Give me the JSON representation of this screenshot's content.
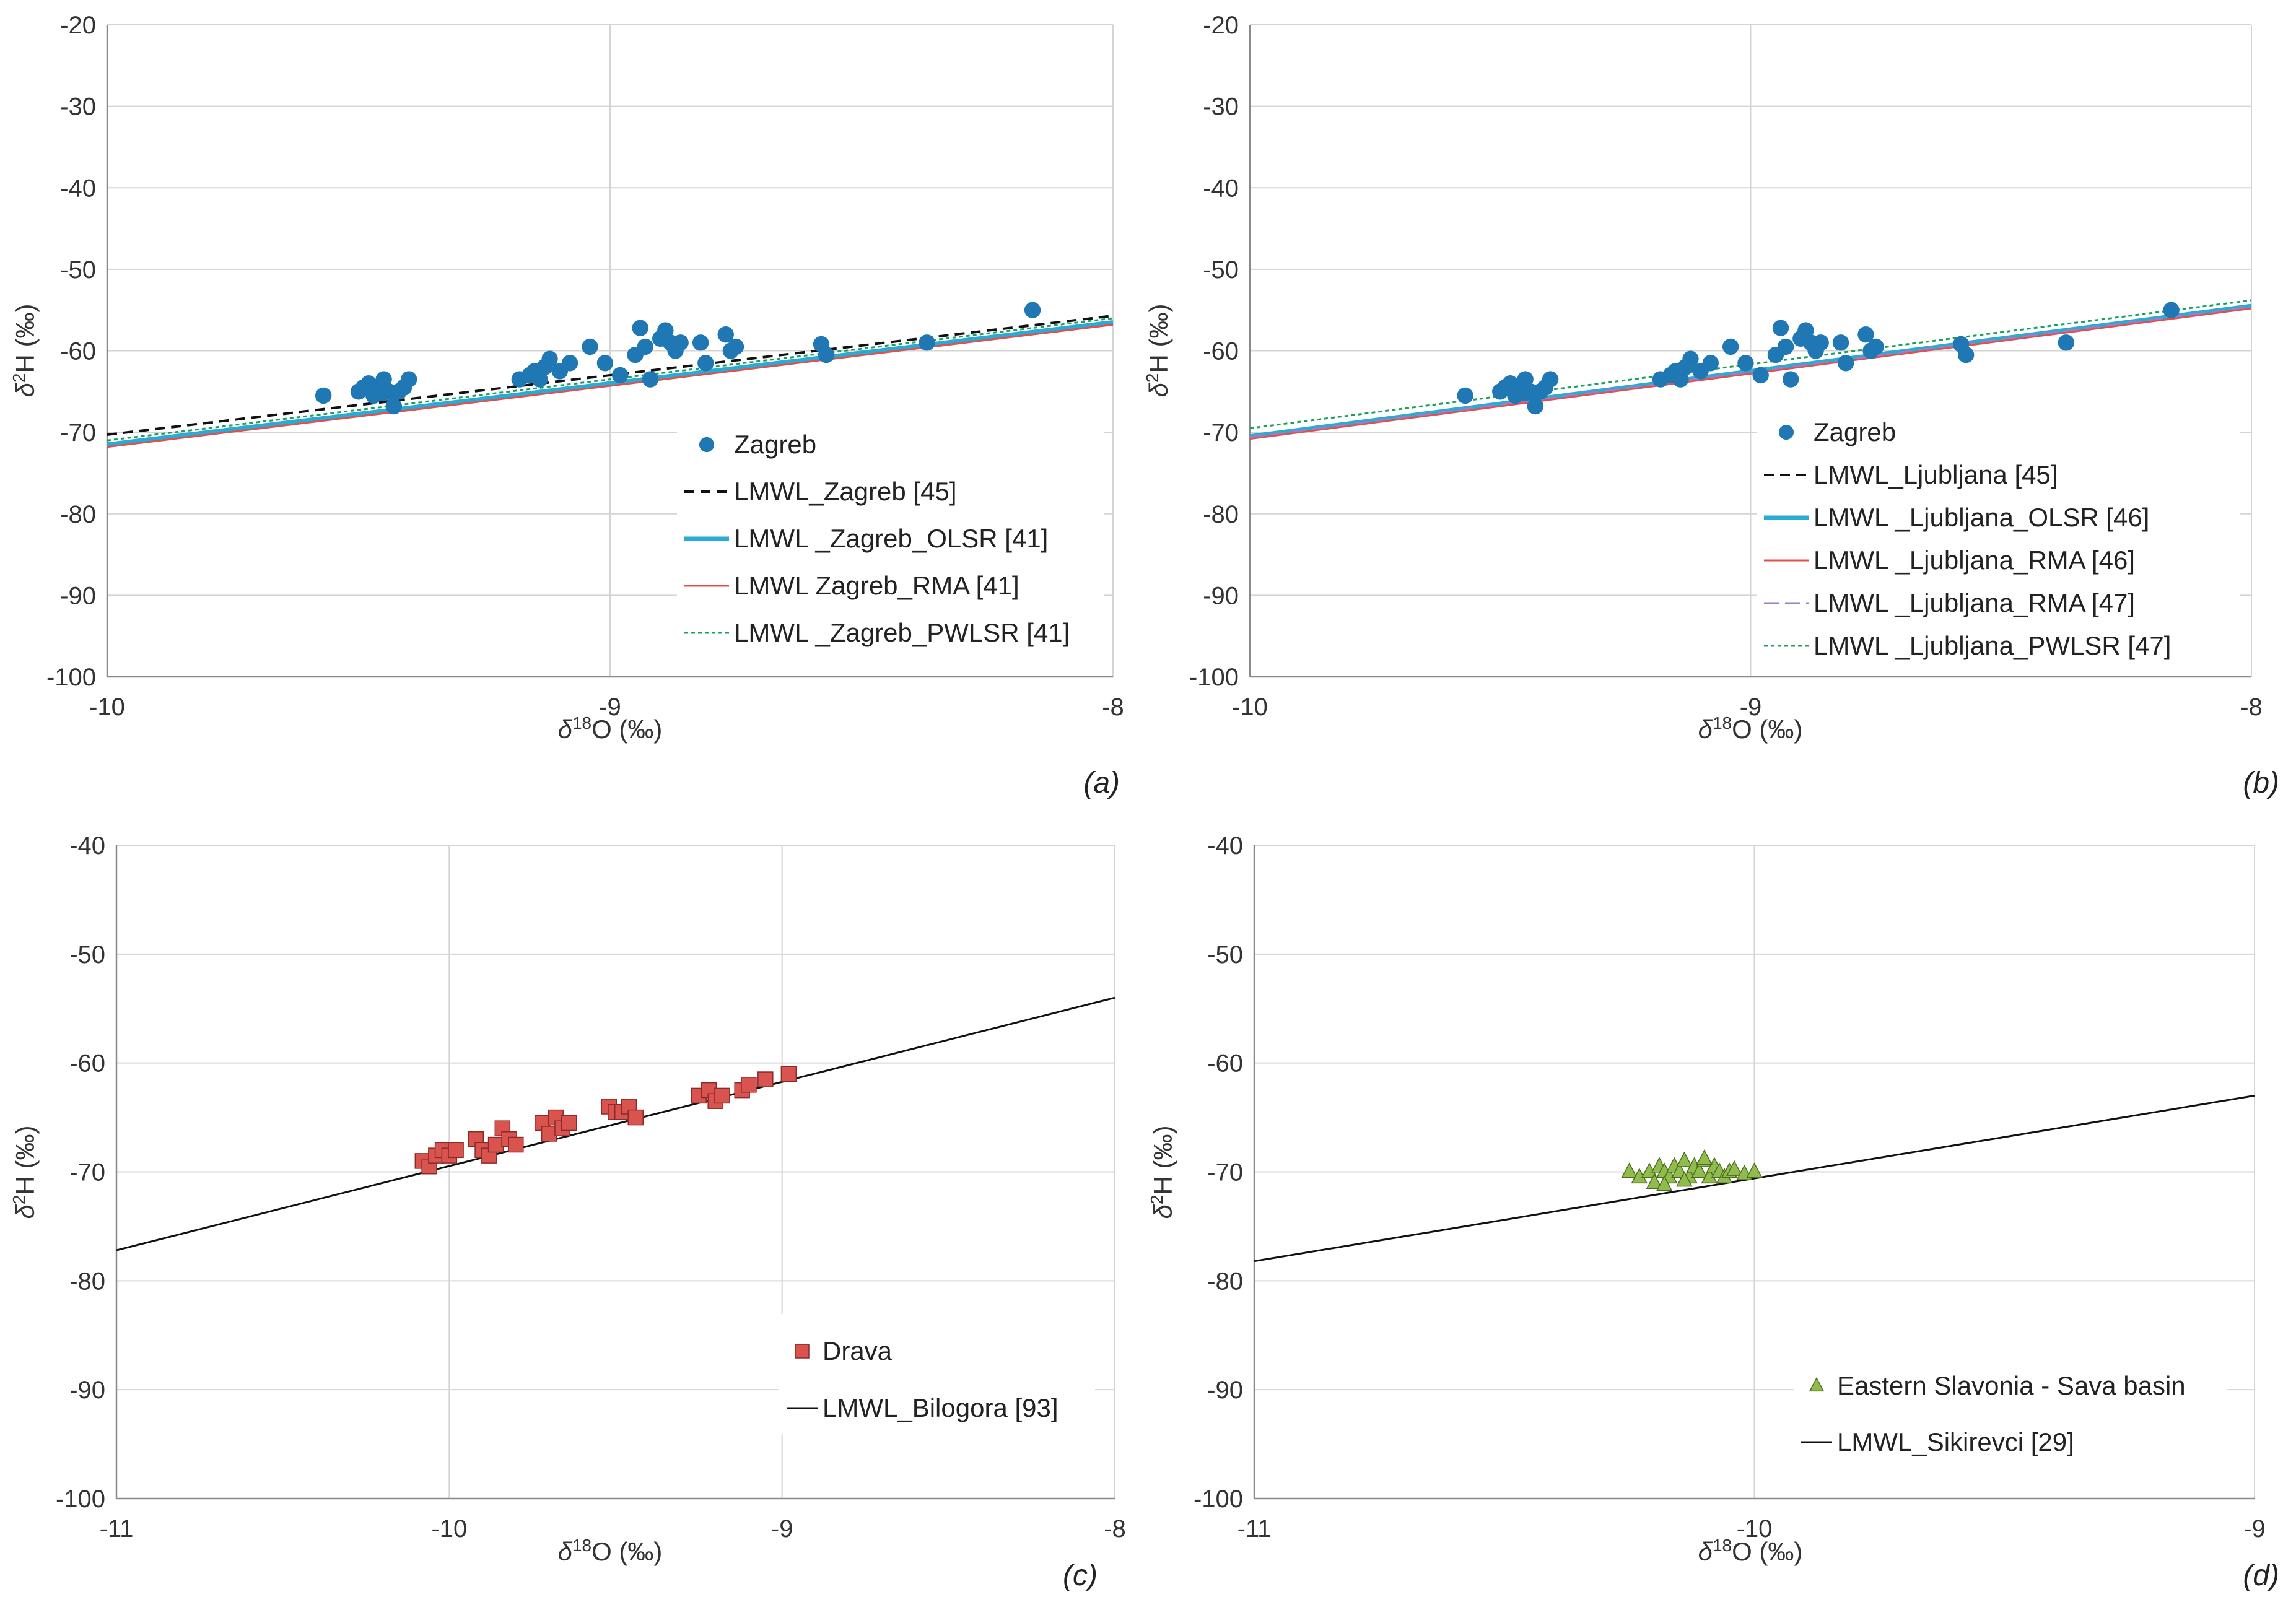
{
  "figure": {
    "panels": [
      "(a)",
      "(b)",
      "(c)",
      "(d)"
    ]
  },
  "colors": {
    "zagreb_points": "#1f77b4",
    "drava_points": "#d9534f",
    "slavonia_points": "#8fbc4a",
    "olsr": "#29abd4",
    "rma": "#e05050",
    "rma_47": "#9b7fc4",
    "pwlsr": "#1aa05a",
    "black_line": "#111111"
  },
  "chart_data": [
    {
      "panel_label": "(a)",
      "type": "scatter",
      "xlabel": "δ18O (‰)",
      "ylabel": "δ2H (‰)",
      "xlim": [
        -10,
        -8
      ],
      "ylim": [
        -100,
        -20
      ],
      "xticks": [
        -10,
        -9,
        -8
      ],
      "xtick_labels": [
        "-10",
        "-9",
        "-8"
      ],
      "yticks": [
        -100,
        -90,
        -80,
        -70,
        -60,
        -50,
        -40,
        -30,
        -20
      ],
      "ytick_labels": [
        "-100",
        "-90",
        "-80",
        "-70",
        "-60",
        "-50",
        "-40",
        "-30",
        "-20"
      ],
      "grid": true,
      "legend_position": "bottom-right",
      "points": {
        "name": "Zagreb",
        "marker": "circle",
        "color_key": "zagreb_points",
        "x": [
          -9.57,
          -9.5,
          -9.49,
          -9.48,
          -9.47,
          -9.46,
          -9.45,
          -9.44,
          -9.43,
          -9.42,
          -9.41,
          -9.4,
          -9.47,
          -9.45,
          -9.42,
          -9.18,
          -9.16,
          -9.15,
          -9.14,
          -9.13,
          -9.12,
          -9.1,
          -9.08,
          -9.04,
          -9.01,
          -8.98,
          -8.95,
          -8.94,
          -8.93,
          -8.92,
          -8.9,
          -8.89,
          -8.88,
          -8.87,
          -8.86,
          -8.82,
          -8.81,
          -8.77,
          -8.76,
          -8.75,
          -8.58,
          -8.57,
          -8.37,
          -8.16
        ],
        "y": [
          -65.5,
          -65,
          -64.5,
          -64,
          -64.5,
          -65,
          -63.5,
          -65,
          -66.8,
          -65,
          -64.5,
          -63.5,
          -65.5,
          -65.2,
          -65,
          -63.5,
          -63,
          -62.5,
          -63.5,
          -62,
          -61,
          -62.5,
          -61.5,
          -59.5,
          -61.5,
          -63,
          -60.5,
          -57.2,
          -59.5,
          -63.5,
          -58.5,
          -57.5,
          -59,
          -60,
          -59,
          -59,
          -61.5,
          -58,
          -60,
          -59.5,
          -59.2,
          -60.5,
          -59,
          -55
        ]
      },
      "lines": [
        {
          "name": "LMWL_Zagreb [45]",
          "style": "dashed",
          "color_key": "black_line",
          "endpoints_x": [
            -10,
            -8
          ],
          "endpoints_y": [
            -70.3,
            -55.7
          ]
        },
        {
          "name": "LMWL _Zagreb_OLSR [41]",
          "style": "solid-thick",
          "color_key": "olsr",
          "endpoints_x": [
            -10,
            -8
          ],
          "endpoints_y": [
            -71.5,
            -56.5
          ]
        },
        {
          "name": "LMWL Zagreb_RMA [41]",
          "style": "solid",
          "color_key": "rma",
          "endpoints_x": [
            -10,
            -8
          ],
          "endpoints_y": [
            -71.8,
            -56.8
          ]
        },
        {
          "name": "LMWL _Zagreb_PWLSR [41]",
          "style": "dotted",
          "color_key": "pwlsr",
          "endpoints_x": [
            -10,
            -8
          ],
          "endpoints_y": [
            -71,
            -56
          ]
        }
      ]
    },
    {
      "panel_label": "(b)",
      "type": "scatter",
      "xlabel": "δ18O (‰)",
      "ylabel": "δ2H (‰)",
      "xlim": [
        -10,
        -8
      ],
      "ylim": [
        -100,
        -20
      ],
      "xticks": [
        -10,
        -9,
        -8
      ],
      "xtick_labels": [
        "-10",
        "-9",
        "-8"
      ],
      "yticks": [
        -100,
        -90,
        -80,
        -70,
        -60,
        -50,
        -40,
        -30,
        -20
      ],
      "ytick_labels": [
        "-100",
        "-90",
        "-80",
        "-70",
        "-60",
        "-50",
        "-40",
        "-30",
        "-20"
      ],
      "grid": true,
      "legend_position": "bottom-right",
      "points": {
        "name": "Zagreb",
        "marker": "circle",
        "color_key": "zagreb_points",
        "x": [
          -9.57,
          -9.5,
          -9.49,
          -9.48,
          -9.47,
          -9.46,
          -9.45,
          -9.44,
          -9.43,
          -9.42,
          -9.41,
          -9.4,
          -9.47,
          -9.45,
          -9.42,
          -9.18,
          -9.16,
          -9.15,
          -9.14,
          -9.13,
          -9.12,
          -9.1,
          -9.08,
          -9.04,
          -9.01,
          -8.98,
          -8.95,
          -8.94,
          -8.93,
          -8.92,
          -8.9,
          -8.89,
          -8.88,
          -8.87,
          -8.86,
          -8.82,
          -8.81,
          -8.77,
          -8.76,
          -8.75,
          -8.58,
          -8.57,
          -8.37,
          -8.16
        ],
        "y": [
          -65.5,
          -65,
          -64.5,
          -64,
          -64.5,
          -65,
          -63.5,
          -65,
          -66.8,
          -65,
          -64.5,
          -63.5,
          -65.5,
          -65.2,
          -65,
          -63.5,
          -63,
          -62.5,
          -63.5,
          -62,
          -61,
          -62.5,
          -61.5,
          -59.5,
          -61.5,
          -63,
          -60.5,
          -57.2,
          -59.5,
          -63.5,
          -58.5,
          -57.5,
          -59,
          -60,
          -59,
          -59,
          -61.5,
          -58,
          -60,
          -59.5,
          -59.2,
          -60.5,
          -59,
          -55
        ]
      },
      "lines": [
        {
          "name": "LMWL_Ljubljana [45]",
          "style": "dashed",
          "color_key": "black_line",
          "endpoints_x": [
            -10,
            -8
          ],
          "endpoints_y": [
            -70.7,
            -54.5
          ]
        },
        {
          "name": "LMWL _Ljubljana_OLSR [46]",
          "style": "solid-thick",
          "color_key": "olsr",
          "endpoints_x": [
            -10,
            -8
          ],
          "endpoints_y": [
            -70.5,
            -54.5
          ]
        },
        {
          "name": "LMWL _Ljubljana_RMA [46]",
          "style": "solid",
          "color_key": "rma",
          "endpoints_x": [
            -10,
            -8
          ],
          "endpoints_y": [
            -70.8,
            -54.8
          ]
        },
        {
          "name": "LMWL _Ljubljana_RMA [47]",
          "style": "long-dash",
          "color_key": "rma_47",
          "endpoints_x": [
            -10,
            -8
          ],
          "endpoints_y": [
            -70.6,
            -54.6
          ]
        },
        {
          "name": "LMWL _Ljubljana_PWLSR [47]",
          "style": "dotted",
          "color_key": "pwlsr",
          "endpoints_x": [
            -10,
            -8
          ],
          "endpoints_y": [
            -69.5,
            -53.8
          ]
        }
      ]
    },
    {
      "panel_label": "(c)",
      "type": "scatter",
      "xlabel": "δ18O (‰)",
      "ylabel": "δ2H (‰)",
      "xlim": [
        -11,
        -8
      ],
      "ylim": [
        -100,
        -40
      ],
      "xticks": [
        -11,
        -10,
        -9,
        -8
      ],
      "xtick_labels": [
        "-11",
        "-10",
        "-9",
        "-8"
      ],
      "yticks": [
        -100,
        -90,
        -80,
        -70,
        -60,
        -50,
        -40
      ],
      "ytick_labels": [
        "-100",
        "-90",
        "-80",
        "-70",
        "-60",
        "-50",
        "-40"
      ],
      "grid": true,
      "legend_position": "bottom-right",
      "points": {
        "name": "Drava",
        "marker": "square",
        "color_key": "drava_points",
        "x": [
          -10.08,
          -10.06,
          -10.04,
          -10.02,
          -10.0,
          -9.98,
          -9.92,
          -9.9,
          -9.88,
          -9.86,
          -9.84,
          -9.82,
          -9.8,
          -9.72,
          -9.7,
          -9.68,
          -9.66,
          -9.64,
          -9.52,
          -9.5,
          -9.48,
          -9.46,
          -9.44,
          -9.25,
          -9.22,
          -9.2,
          -9.18,
          -9.12,
          -9.1,
          -9.05,
          -8.98
        ],
        "y": [
          -69,
          -69.5,
          -68.5,
          -68,
          -68.5,
          -68,
          -67,
          -68,
          -68.5,
          -67.5,
          -66,
          -67,
          -67.5,
          -65.5,
          -66.5,
          -65,
          -66,
          -65.5,
          -64,
          -64.5,
          -64.5,
          -64,
          -65,
          -63,
          -62.5,
          -63.5,
          -63,
          -62.5,
          -62,
          -61.5,
          -61
        ]
      },
      "lines": [
        {
          "name": "LMWL_Bilogora [93]",
          "style": "solid",
          "color_key": "black_line",
          "endpoints_x": [
            -11,
            -8
          ],
          "endpoints_y": [
            -77.2,
            -54
          ]
        }
      ]
    },
    {
      "panel_label": "(d)",
      "type": "scatter",
      "xlabel": "δ18O (‰)",
      "ylabel": "δ2H (‰)",
      "xlim": [
        -11,
        -9
      ],
      "ylim": [
        -100,
        -40
      ],
      "xticks": [
        -11,
        -10,
        -9
      ],
      "xtick_labels": [
        "-11",
        "-10",
        "-9"
      ],
      "yticks": [
        -100,
        -90,
        -80,
        -70,
        -60,
        -50,
        -40
      ],
      "ytick_labels": [
        "-100",
        "-90",
        "-80",
        "-70",
        "-60",
        "-50",
        "-40"
      ],
      "grid": true,
      "legend_position": "bottom-right",
      "points": {
        "name": "Eastern Slavonia - Sava basin",
        "marker": "triangle",
        "color_key": "slavonia_points",
        "x": [
          -10.25,
          -10.23,
          -10.21,
          -10.2,
          -10.19,
          -10.18,
          -10.17,
          -10.16,
          -10.15,
          -10.14,
          -10.13,
          -10.12,
          -10.11,
          -10.1,
          -10.09,
          -10.08,
          -10.07,
          -10.06,
          -10.05,
          -10.04,
          -10.02,
          -10.0,
          -10.18,
          -10.14,
          -10.1
        ],
        "y": [
          -70,
          -70.5,
          -70,
          -71,
          -69.5,
          -70,
          -70.5,
          -69.5,
          -70,
          -69,
          -70.5,
          -69.5,
          -70,
          -69,
          -70.5,
          -69.5,
          -70,
          -70.5,
          -70,
          -69.8,
          -70.2,
          -70,
          -71.2,
          -70.8,
          -68.8
        ]
      },
      "lines": [
        {
          "name": "LMWL_Sikirevci [29]",
          "style": "solid",
          "color_key": "black_line",
          "endpoints_x": [
            -11,
            -9
          ],
          "endpoints_y": [
            -78.2,
            -63
          ]
        }
      ]
    }
  ]
}
